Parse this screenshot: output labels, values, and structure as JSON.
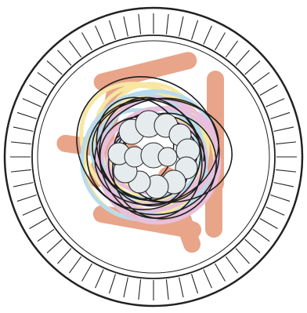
{
  "illustration": {
    "subject_icon": "noodle-nest-plate-icon",
    "colors": {
      "outline": "#222222",
      "plate": "#ffffff",
      "stick": "#e8a58a",
      "noodle_yellow": "#f7e7a1",
      "noodle_blue": "#b9dbec",
      "noodle_pink": "#e8bfdc",
      "noodle_dark": "#1e1e1e",
      "cloud": "#e6ebee"
    }
  }
}
